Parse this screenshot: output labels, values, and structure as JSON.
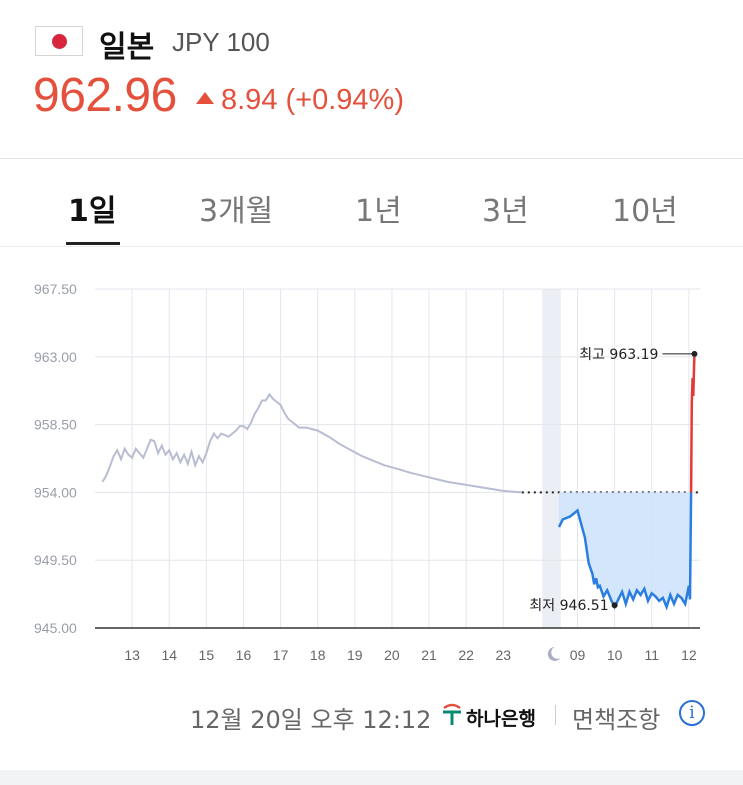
{
  "header": {
    "flag_icon": "japan-flag-icon",
    "country": "일본",
    "currency": "JPY 100",
    "price": "962.96",
    "change_text": "8.94 (+0.94%)",
    "accent_color": "#e5503c"
  },
  "tabs": [
    {
      "label": "1일",
      "active": true
    },
    {
      "label": "3개월",
      "active": false
    },
    {
      "label": "1년",
      "active": false
    },
    {
      "label": "3년",
      "active": false
    },
    {
      "label": "10년",
      "active": false
    }
  ],
  "footer": {
    "datetime": "12월 20일 오후 12:12",
    "bank": "하나은행",
    "disclaimer": "면책조항",
    "info_icon": "info-icon"
  },
  "chart_data": {
    "type": "line",
    "ylim": [
      945.0,
      967.5
    ],
    "y_ticks": [
      "967.50",
      "963.00",
      "958.50",
      "954.00",
      "949.50",
      "945.00"
    ],
    "x_tick_labels": [
      "13",
      "14",
      "15",
      "16",
      "17",
      "18",
      "19",
      "20",
      "21",
      "22",
      "23",
      "moon-icon",
      "09",
      "10",
      "11",
      "12"
    ],
    "previous_close": 954.0,
    "high_label": "최고 963.19",
    "high_value": 963.19,
    "low_label": "최저 946.51",
    "low_value": 946.51,
    "colors": {
      "previous_day": "#b8bdd2",
      "below": "#2b7de0",
      "above": "#e53935",
      "area": "#cfe3fb",
      "night": "#eceef5"
    },
    "series": [
      {
        "key": "previous_day",
        "x": [
          12.2,
          12.3,
          12.4,
          12.5,
          12.6,
          12.7,
          12.8,
          12.9,
          13.0,
          13.1,
          13.2,
          13.3,
          13.4,
          13.5,
          13.6,
          13.7,
          13.8,
          13.9,
          14.0,
          14.1,
          14.2,
          14.3,
          14.4,
          14.5,
          14.6,
          14.7,
          14.8,
          14.9,
          15.0,
          15.1,
          15.2,
          15.3,
          15.4,
          15.5,
          15.6,
          15.7,
          15.8,
          15.9,
          16.0,
          16.1,
          16.2,
          16.3,
          16.4,
          16.5,
          16.6,
          16.7,
          16.8,
          16.9,
          17.0,
          17.1,
          17.2,
          17.3,
          17.4,
          17.5,
          17.7,
          18.0,
          18.3,
          18.6,
          18.9,
          19.2,
          19.5,
          19.8,
          20.1,
          20.5,
          21.0,
          21.5,
          22.0,
          22.5,
          23.0,
          23.5
        ],
        "y": [
          954.7,
          955.1,
          955.7,
          956.4,
          956.8,
          956.2,
          956.9,
          956.5,
          956.3,
          956.9,
          956.6,
          956.3,
          956.9,
          957.5,
          957.4,
          956.6,
          957.1,
          956.5,
          956.8,
          956.2,
          956.6,
          956.0,
          956.5,
          955.9,
          956.7,
          955.8,
          956.4,
          956.0,
          956.6,
          957.4,
          957.9,
          957.6,
          957.9,
          957.8,
          957.7,
          957.9,
          958.1,
          958.4,
          958.4,
          958.2,
          958.6,
          959.2,
          959.6,
          960.1,
          960.1,
          960.5,
          960.2,
          960.0,
          959.8,
          959.3,
          958.9,
          958.7,
          958.5,
          958.3,
          958.3,
          958.1,
          957.7,
          957.2,
          956.8,
          956.4,
          956.1,
          955.8,
          955.6,
          955.3,
          955.0,
          954.7,
          954.5,
          954.3,
          954.1,
          954.0
        ]
      },
      {
        "key": "today",
        "x": [
          24.5,
          24.6,
          24.8,
          25.0,
          25.2,
          25.3,
          25.4,
          25.45,
          25.5,
          25.55,
          25.6,
          25.7,
          25.8,
          25.9,
          26.0,
          26.1,
          26.2,
          26.3,
          26.4,
          26.5,
          26.6,
          26.7,
          26.8,
          26.9,
          27.0,
          27.1,
          27.2,
          27.3,
          27.4,
          27.5,
          27.6,
          27.7,
          27.8,
          27.9,
          28.0,
          28.03,
          28.06,
          28.08,
          28.1,
          28.12,
          28.14,
          28.15
        ],
        "y": [
          951.7,
          952.2,
          952.4,
          952.8,
          951.0,
          949.3,
          948.6,
          947.9,
          948.3,
          947.7,
          947.8,
          947.1,
          947.5,
          946.9,
          946.4,
          946.9,
          947.4,
          946.6,
          947.4,
          946.9,
          947.5,
          947.2,
          947.6,
          946.8,
          947.3,
          947.1,
          946.8,
          947.0,
          946.4,
          947.2,
          946.6,
          947.2,
          947.0,
          946.6,
          947.8,
          946.9,
          954.0,
          960.0,
          961.6,
          960.4,
          962.5,
          963.0
        ]
      }
    ]
  }
}
